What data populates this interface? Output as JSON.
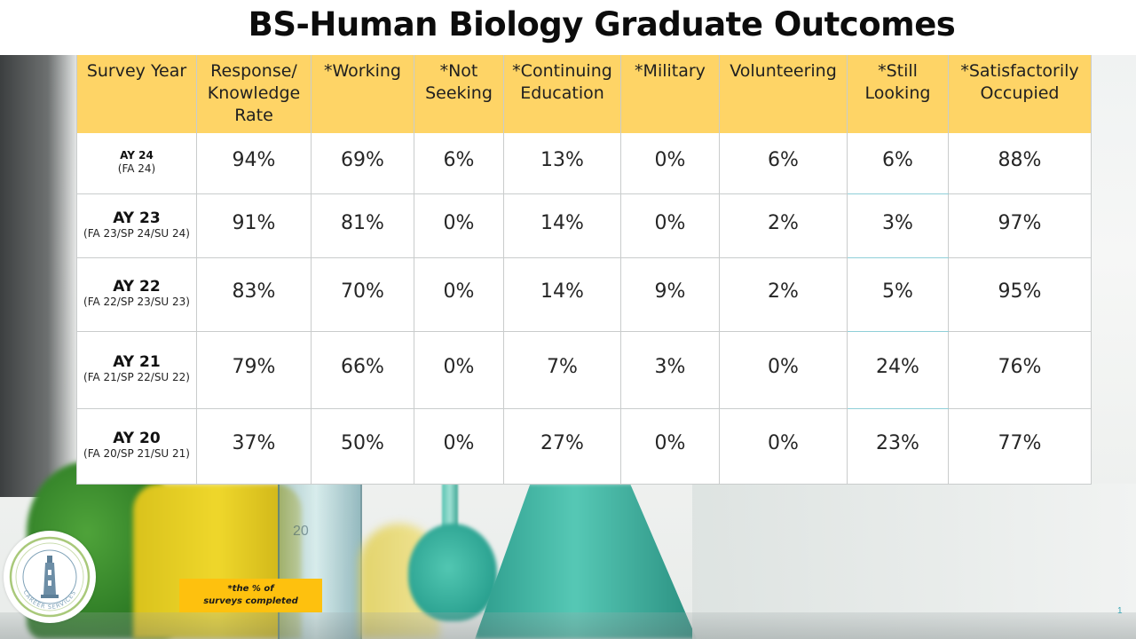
{
  "title": "BS-Human Biology Graduate Outcomes",
  "columns": [
    "Survey Year",
    "Response/ Knowledge Rate",
    "*Working",
    "*Not Seeking",
    "*Continuing Education",
    "*Military",
    "Volunteering",
    "*Still Looking",
    "*Satisfactorily Occupied"
  ],
  "rows": [
    {
      "year": "AY 24",
      "terms": "(FA 24)",
      "values": [
        "94%",
        "69%",
        "6%",
        "13%",
        "0%",
        "6%",
        "6%",
        "88%"
      ]
    },
    {
      "year": "AY 23",
      "terms": "(FA 23/SP 24/SU 24)",
      "values": [
        "91%",
        "81%",
        "0%",
        "14%",
        "0%",
        "2%",
        "3%",
        "97%"
      ]
    },
    {
      "year": "AY 22",
      "terms": "(FA 22/SP 23/SU 23)",
      "values": [
        "83%",
        "70%",
        "0%",
        "14%",
        "9%",
        "2%",
        "5%",
        "95%"
      ]
    },
    {
      "year": "AY 21",
      "terms": "(FA 21/SP 22/SU 22)",
      "values": [
        "79%",
        "66%",
        "0%",
        "7%",
        "3%",
        "0%",
        "24%",
        "76%"
      ]
    },
    {
      "year": "AY 20",
      "terms": "(FA 20/SP 21/SU 21)",
      "values": [
        "37%",
        "50%",
        "0%",
        "27%",
        "0%",
        "0%",
        "23%",
        "77%"
      ]
    }
  ],
  "footnote": {
    "line1": "*the % of",
    "line2": "surveys completed"
  },
  "logo": {
    "icon": "university-career-services-seal-icon",
    "text": "CAREER SERVICES"
  },
  "page_number": "1",
  "colors": {
    "header_fill": "#fed466",
    "footnote_fill": "#fec10e",
    "page_number": "#3aa6b5"
  }
}
